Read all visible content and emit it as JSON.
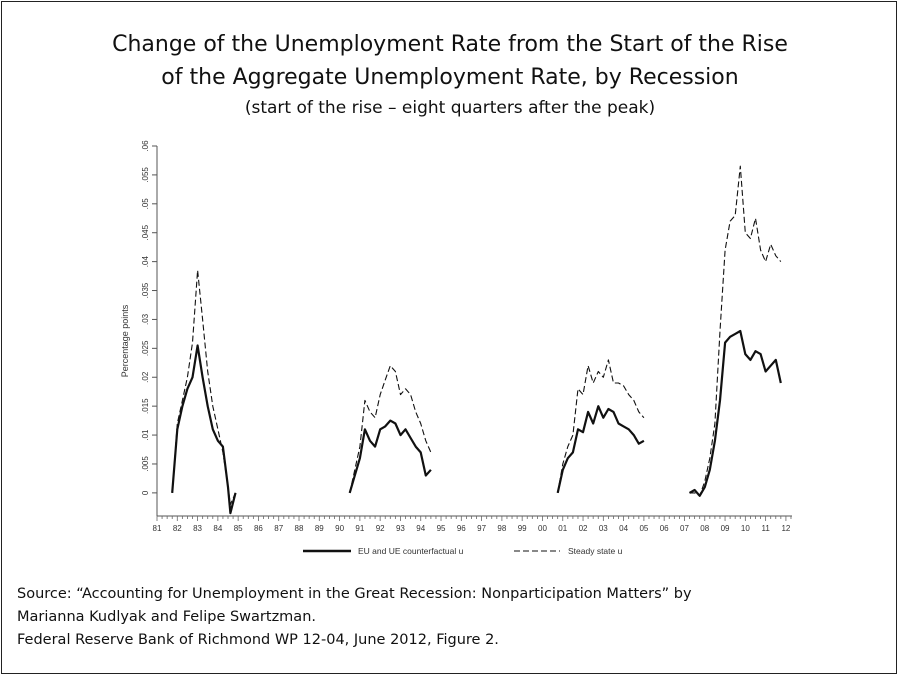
{
  "title_line1": "Change of the Unemployment Rate from the Start of the Rise",
  "title_line2": "of the Aggregate Unemployment Rate, by Recession",
  "subtitle": "(start of the rise – eight quarters after the peak)",
  "source_line1": "Source:  “Accounting for Unemployment in the Great Recession: Nonparticipation Matters” by",
  "source_line2": "Marianna Kudlyak and Felipe Swartzman.",
  "source_line3": "Federal Reserve Bank of Richmond WP 12-04, June 2012, Figure 2.",
  "chart_data": {
    "type": "line",
    "ylabel": "Percentage points",
    "ylim": [
      -0.004,
      0.06
    ],
    "xlim": [
      1981.0,
      2012.3
    ],
    "y_ticks": [
      {
        "v": 0,
        "label": "0"
      },
      {
        "v": 0.005,
        "label": ".005"
      },
      {
        "v": 0.01,
        "label": ".01"
      },
      {
        "v": 0.015,
        "label": ".015"
      },
      {
        "v": 0.02,
        "label": ".02"
      },
      {
        "v": 0.025,
        "label": ".025"
      },
      {
        "v": 0.03,
        "label": ".03"
      },
      {
        "v": 0.035,
        "label": ".035"
      },
      {
        "v": 0.04,
        "label": ".04"
      },
      {
        "v": 0.045,
        "label": ".045"
      },
      {
        "v": 0.05,
        "label": ".05"
      },
      {
        "v": 0.055,
        "label": ".055"
      },
      {
        "v": 0.06,
        "label": ".06"
      }
    ],
    "x_tick_labels": [
      "81",
      "82",
      "83",
      "84",
      "85",
      "86",
      "87",
      "88",
      "89",
      "90",
      "91",
      "92",
      "93",
      "94",
      "95",
      "96",
      "97",
      "98",
      "99",
      "00",
      "01",
      "02",
      "03",
      "04",
      "05",
      "06",
      "07",
      "08",
      "09",
      "10",
      "11",
      "12"
    ],
    "series": [
      {
        "name": "EU and UE counterfactual u",
        "style": "solid",
        "segments": [
          [
            [
              1981.75,
              0.0
            ],
            [
              1982.0,
              0.011
            ],
            [
              1982.25,
              0.015
            ],
            [
              1982.5,
              0.018
            ],
            [
              1982.75,
              0.02
            ],
            [
              1983.0,
              0.0255
            ],
            [
              1983.25,
              0.02
            ],
            [
              1983.5,
              0.015
            ],
            [
              1983.75,
              0.011
            ],
            [
              1984.0,
              0.009
            ],
            [
              1984.25,
              0.008
            ],
            [
              1984.5,
              0.001
            ],
            [
              1984.62,
              -0.0035
            ],
            [
              1984.87,
              0.0
            ]
          ],
          [
            [
              1990.5,
              0.0
            ],
            [
              1990.75,
              0.003
            ],
            [
              1991.0,
              0.006
            ],
            [
              1991.25,
              0.011
            ],
            [
              1991.5,
              0.009
            ],
            [
              1991.75,
              0.008
            ],
            [
              1992.0,
              0.011
            ],
            [
              1992.25,
              0.0115
            ],
            [
              1992.5,
              0.0125
            ],
            [
              1992.75,
              0.012
            ],
            [
              1993.0,
              0.01
            ],
            [
              1993.25,
              0.011
            ],
            [
              1993.5,
              0.0095
            ],
            [
              1993.75,
              0.008
            ],
            [
              1994.0,
              0.007
            ],
            [
              1994.25,
              0.003
            ],
            [
              1994.5,
              0.004
            ]
          ],
          [
            [
              2000.75,
              0.0
            ],
            [
              2001.0,
              0.004
            ],
            [
              2001.25,
              0.006
            ],
            [
              2001.5,
              0.007
            ],
            [
              2001.75,
              0.011
            ],
            [
              2002.0,
              0.0105
            ],
            [
              2002.25,
              0.014
            ],
            [
              2002.5,
              0.012
            ],
            [
              2002.75,
              0.015
            ],
            [
              2003.0,
              0.013
            ],
            [
              2003.25,
              0.0145
            ],
            [
              2003.5,
              0.014
            ],
            [
              2003.75,
              0.012
            ],
            [
              2004.0,
              0.0115
            ],
            [
              2004.25,
              0.011
            ],
            [
              2004.5,
              0.01
            ],
            [
              2004.75,
              0.0085
            ],
            [
              2005.0,
              0.009
            ]
          ],
          [
            [
              2007.25,
              0.0
            ],
            [
              2007.5,
              0.0005
            ],
            [
              2007.75,
              -0.0005
            ],
            [
              2008.0,
              0.001
            ],
            [
              2008.25,
              0.004
            ],
            [
              2008.5,
              0.009
            ],
            [
              2008.75,
              0.016
            ],
            [
              2009.0,
              0.026
            ],
            [
              2009.25,
              0.027
            ],
            [
              2009.5,
              0.0275
            ],
            [
              2009.75,
              0.028
            ],
            [
              2010.0,
              0.024
            ],
            [
              2010.25,
              0.023
            ],
            [
              2010.5,
              0.0245
            ],
            [
              2010.75,
              0.024
            ],
            [
              2011.0,
              0.021
            ],
            [
              2011.25,
              0.022
            ],
            [
              2011.5,
              0.023
            ],
            [
              2011.75,
              0.019
            ]
          ]
        ]
      },
      {
        "name": "Steady state u",
        "style": "dashed",
        "segments": [
          [
            [
              1981.75,
              0.0
            ],
            [
              1982.0,
              0.012
            ],
            [
              1982.25,
              0.016
            ],
            [
              1982.5,
              0.02
            ],
            [
              1982.75,
              0.026
            ],
            [
              1983.0,
              0.0385
            ],
            [
              1983.25,
              0.03
            ],
            [
              1983.5,
              0.021
            ],
            [
              1983.75,
              0.015
            ],
            [
              1984.0,
              0.011
            ],
            [
              1984.25,
              0.007
            ],
            [
              1984.5,
              0.001
            ],
            [
              1984.62,
              -0.002
            ],
            [
              1984.87,
              0.0
            ]
          ],
          [
            [
              1990.5,
              0.0
            ],
            [
              1990.75,
              0.004
            ],
            [
              1991.0,
              0.008
            ],
            [
              1991.25,
              0.016
            ],
            [
              1991.5,
              0.014
            ],
            [
              1991.75,
              0.013
            ],
            [
              1992.0,
              0.017
            ],
            [
              1992.25,
              0.0195
            ],
            [
              1992.5,
              0.022
            ],
            [
              1992.75,
              0.021
            ],
            [
              1993.0,
              0.017
            ],
            [
              1993.25,
              0.018
            ],
            [
              1993.5,
              0.017
            ],
            [
              1993.75,
              0.014
            ],
            [
              1994.0,
              0.012
            ],
            [
              1994.25,
              0.009
            ],
            [
              1994.5,
              0.007
            ]
          ],
          [
            [
              2000.75,
              0.0
            ],
            [
              2001.0,
              0.005
            ],
            [
              2001.25,
              0.008
            ],
            [
              2001.5,
              0.01
            ],
            [
              2001.75,
              0.018
            ],
            [
              2002.0,
              0.017
            ],
            [
              2002.25,
              0.022
            ],
            [
              2002.5,
              0.019
            ],
            [
              2002.75,
              0.021
            ],
            [
              2003.0,
              0.02
            ],
            [
              2003.25,
              0.023
            ],
            [
              2003.5,
              0.019
            ],
            [
              2003.75,
              0.019
            ],
            [
              2004.0,
              0.0185
            ],
            [
              2004.25,
              0.017
            ],
            [
              2004.5,
              0.016
            ],
            [
              2004.75,
              0.014
            ],
            [
              2005.0,
              0.013
            ]
          ],
          [
            [
              2007.25,
              0.0
            ],
            [
              2007.5,
              0.0
            ],
            [
              2007.75,
              -0.0005
            ],
            [
              2008.0,
              0.002
            ],
            [
              2008.25,
              0.006
            ],
            [
              2008.5,
              0.012
            ],
            [
              2008.75,
              0.028
            ],
            [
              2009.0,
              0.042
            ],
            [
              2009.25,
              0.047
            ],
            [
              2009.5,
              0.048
            ],
            [
              2009.75,
              0.0565
            ],
            [
              2010.0,
              0.045
            ],
            [
              2010.25,
              0.044
            ],
            [
              2010.5,
              0.0475
            ],
            [
              2010.75,
              0.042
            ],
            [
              2011.0,
              0.04
            ],
            [
              2011.25,
              0.043
            ],
            [
              2011.5,
              0.041
            ],
            [
              2011.75,
              0.04
            ]
          ]
        ]
      }
    ],
    "legend": "bottom"
  }
}
